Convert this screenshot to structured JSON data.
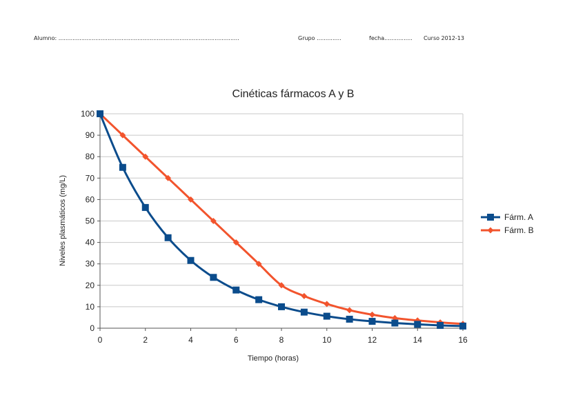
{
  "header": {
    "alumno": "Alumno: .......................................................................................................",
    "grupo": "Grupo ..............",
    "fecha": "fecha................",
    "curso": "Curso 2012-13"
  },
  "colors": {
    "series_a": "#0b4c8c",
    "series_b": "#f2542d",
    "grid": "#c8c8c8",
    "axis": "#555555"
  },
  "chart_data": {
    "type": "line",
    "title": "Cinéticas fármacos A y B",
    "xlabel": "Tiempo (horas)",
    "ylabel": "Niveles plasmáticos (mg/L)",
    "xlim": [
      0,
      16
    ],
    "ylim": [
      0,
      100
    ],
    "xticks": [
      0,
      2,
      4,
      6,
      8,
      10,
      12,
      14,
      16
    ],
    "yticks": [
      0,
      10,
      20,
      30,
      40,
      50,
      60,
      70,
      80,
      90,
      100
    ],
    "grid": true,
    "legend_position": "right",
    "x": [
      0,
      1,
      2,
      3,
      4,
      5,
      6,
      7,
      8,
      9,
      10,
      11,
      12,
      13,
      14,
      15,
      16
    ],
    "series": [
      {
        "name": "Fárm. A",
        "marker": "square",
        "values": [
          100,
          75,
          56.3,
          42.2,
          31.6,
          23.7,
          17.8,
          13.3,
          10,
          7.5,
          5.6,
          4.2,
          3.2,
          2.4,
          1.8,
          1.3,
          1
        ]
      },
      {
        "name": "Fárm. B",
        "marker": "diamond",
        "values": [
          100,
          90,
          80,
          70,
          60,
          50,
          40,
          30,
          20,
          15,
          11.3,
          8.4,
          6.3,
          4.7,
          3.6,
          2.7,
          2
        ]
      }
    ]
  }
}
